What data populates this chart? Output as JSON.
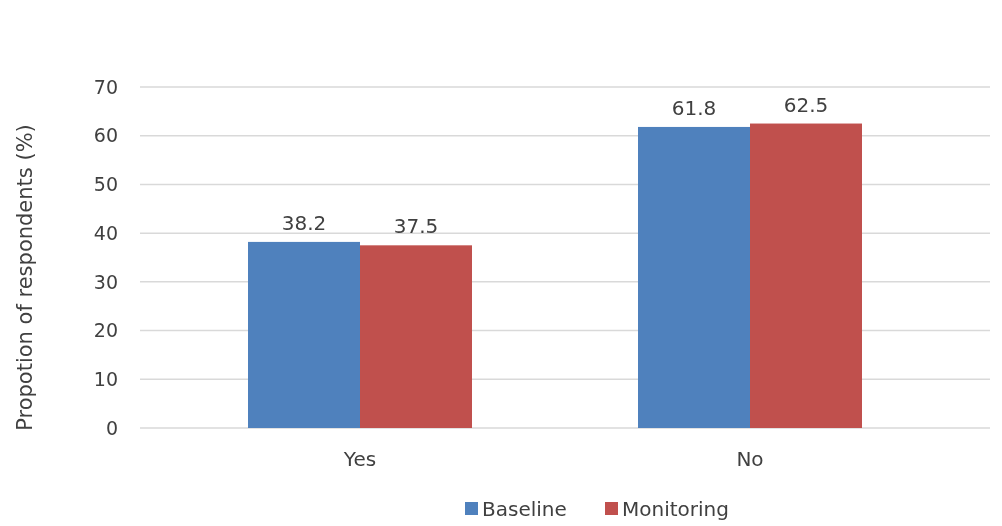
{
  "chart_data": {
    "type": "bar",
    "ylabel": "Propotion of respondents (%)",
    "categories": [
      "Yes",
      "No"
    ],
    "series": [
      {
        "name": "Baseline",
        "color": "#4f81bd",
        "values": [
          38.2,
          61.8
        ]
      },
      {
        "name": "Monitoring",
        "color": "#c0504d",
        "values": [
          37.5,
          62.5
        ]
      }
    ],
    "ylim": [
      0,
      70
    ],
    "yticks": [
      0,
      10,
      20,
      30,
      40,
      50,
      60,
      70
    ],
    "grid": true,
    "legend": "bottom",
    "data_labels": true
  }
}
